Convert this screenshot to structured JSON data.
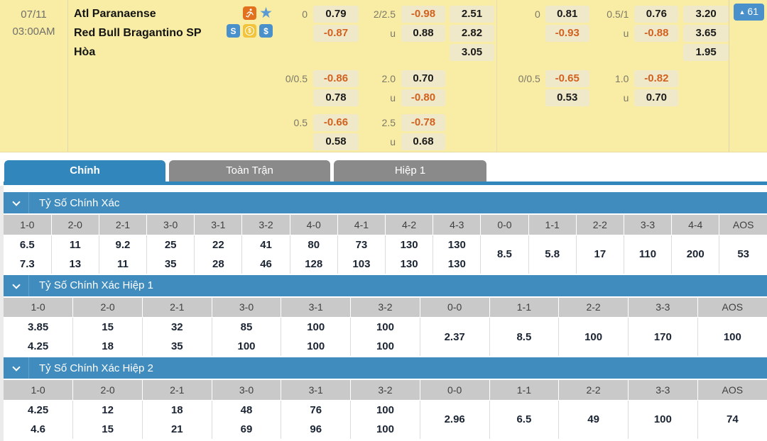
{
  "match": {
    "date": "07/11",
    "time": "03:00AM",
    "home_team": "Atl Paranaense",
    "away_team": "Red Bull Bragantino SP",
    "draw_label": "Hòa",
    "update_count": "61",
    "icons": {
      "striker": "running-player",
      "favorite_star": "★",
      "stats_letter": "S",
      "coin_symbol": "$",
      "dollar_symbol": "$"
    },
    "groups": [
      {
        "blocks": [
          {
            "rows": [
              {
                "hl": "0",
                "hv": "0.79",
                "ol": "2/2.5",
                "ov": "-0.98",
                "xv": "2.51"
              },
              {
                "hl": "",
                "hv": "-0.87",
                "ol": "u",
                "ov": "0.88",
                "xv": "2.82"
              },
              {
                "hl": "",
                "hv": "",
                "ol": "",
                "ov": "",
                "xv": "3.05"
              }
            ]
          },
          {
            "rows": [
              {
                "hl": "0/0.5",
                "hv": "-0.86",
                "ol": "2.0",
                "ov": "0.70",
                "xv": ""
              },
              {
                "hl": "",
                "hv": "0.78",
                "ol": "u",
                "ov": "-0.80",
                "xv": ""
              }
            ]
          },
          {
            "rows": [
              {
                "hl": "0.5",
                "hv": "-0.66",
                "ol": "2.5",
                "ov": "-0.78",
                "xv": ""
              },
              {
                "hl": "",
                "hv": "0.58",
                "ol": "u",
                "ov": "0.68",
                "xv": ""
              }
            ]
          }
        ]
      },
      {
        "blocks": [
          {
            "rows": [
              {
                "hl": "0",
                "hv": "0.81",
                "ol": "0.5/1",
                "ov": "0.76",
                "xv": "3.20"
              },
              {
                "hl": "",
                "hv": "-0.93",
                "ol": "u",
                "ov": "-0.88",
                "xv": "3.65"
              },
              {
                "hl": "",
                "hv": "",
                "ol": "",
                "ov": "",
                "xv": "1.95"
              }
            ]
          },
          {
            "rows": [
              {
                "hl": "0/0.5",
                "hv": "-0.65",
                "ol": "1.0",
                "ov": "-0.82",
                "xv": ""
              },
              {
                "hl": "",
                "hv": "0.53",
                "ol": "u",
                "ov": "0.70",
                "xv": ""
              }
            ]
          }
        ]
      }
    ]
  },
  "tabs": [
    {
      "label": "Chính",
      "active": true
    },
    {
      "label": "Toàn Trận",
      "active": false
    },
    {
      "label": "Hiệp 1",
      "active": false
    }
  ],
  "sections": [
    {
      "title": "Tỷ Số Chính Xác",
      "columns": [
        "1-0",
        "2-0",
        "2-1",
        "3-0",
        "3-1",
        "3-2",
        "4-0",
        "4-1",
        "4-2",
        "4-3",
        "0-0",
        "1-1",
        "2-2",
        "3-3",
        "4-4",
        "AOS"
      ],
      "top": [
        "6.5",
        "11",
        "9.2",
        "25",
        "22",
        "41",
        "80",
        "73",
        "130",
        "130"
      ],
      "bottom": [
        "7.3",
        "13",
        "11",
        "35",
        "28",
        "46",
        "128",
        "103",
        "130",
        "130"
      ],
      "single": [
        "8.5",
        "5.8",
        "17",
        "110",
        "200",
        "53"
      ]
    },
    {
      "title": "Tỷ Số Chính Xác Hiệp 1",
      "columns": [
        "1-0",
        "2-0",
        "2-1",
        "3-0",
        "3-1",
        "3-2",
        "0-0",
        "1-1",
        "2-2",
        "3-3",
        "AOS"
      ],
      "top": [
        "3.85",
        "15",
        "32",
        "85",
        "100",
        "100"
      ],
      "bottom": [
        "4.25",
        "18",
        "35",
        "100",
        "100",
        "100"
      ],
      "single": [
        "2.37",
        "8.5",
        "100",
        "170",
        "100"
      ]
    },
    {
      "title": "Tỷ Số Chính Xác Hiệp 2",
      "columns": [
        "1-0",
        "2-0",
        "2-1",
        "3-0",
        "3-1",
        "3-2",
        "0-0",
        "1-1",
        "2-2",
        "3-3",
        "AOS"
      ],
      "top": [
        "4.25",
        "12",
        "18",
        "48",
        "76",
        "100"
      ],
      "bottom": [
        "4.6",
        "15",
        "21",
        "69",
        "96",
        "100"
      ],
      "single": [
        "2.96",
        "6.5",
        "49",
        "100",
        "74"
      ]
    }
  ],
  "colors": {
    "accent_blue": "#3186BC",
    "section_blue": "#418CBE",
    "cream_bg": "#F9EDA5",
    "pill_bg": "#F0E9C9",
    "negative_odds": "#D2611F",
    "badge_blue": "#4A90CB"
  }
}
